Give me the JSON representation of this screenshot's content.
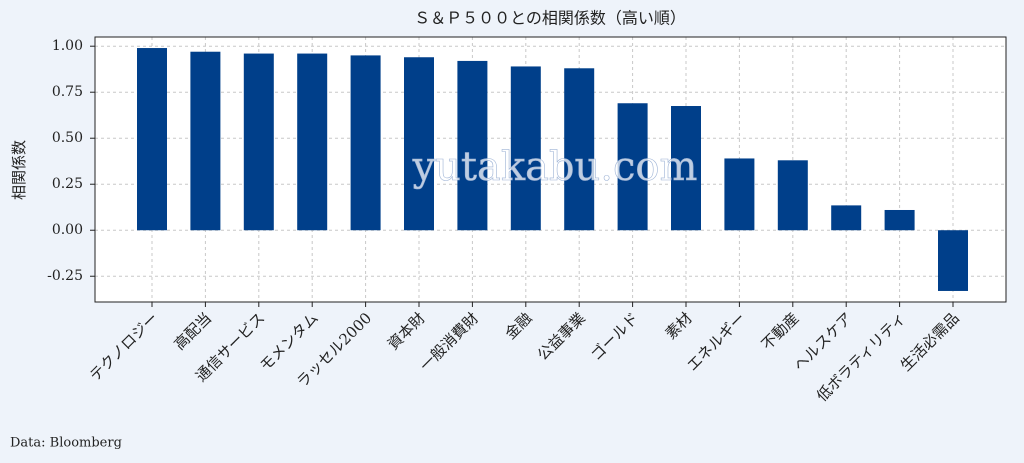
{
  "chart_data": {
    "type": "bar",
    "title": "Ｓ＆Ｐ５００との相関係数（高い順）",
    "ylabel": "相関係数",
    "source": "Data: Bloomberg",
    "watermark": "yutakabu.com",
    "categories": [
      "テクノロジー",
      "高配当",
      "通信サービス",
      "モメンタム",
      "ラッセル2000",
      "資本財",
      "一般消費財",
      "金融",
      "公益事業",
      "ゴールド",
      "素材",
      "エネルギー",
      "不動産",
      "ヘルスケア",
      "低ボラティリティ",
      "生活必需品"
    ],
    "values": [
      0.99,
      0.97,
      0.96,
      0.96,
      0.95,
      0.94,
      0.92,
      0.89,
      0.88,
      0.69,
      0.675,
      0.39,
      0.38,
      0.135,
      0.11,
      -0.33
    ],
    "color": "#003f8a",
    "ylim": [
      -0.39,
      1.05
    ],
    "yticks": [
      {
        "value": -0.25,
        "label": "-0.25"
      },
      {
        "value": 0,
        "label": "0.00"
      },
      {
        "value": 0.25,
        "label": "0.25"
      },
      {
        "value": 0.5,
        "label": "0.50"
      },
      {
        "value": 0.75,
        "label": "0.75"
      },
      {
        "value": 1,
        "label": "1.00"
      }
    ],
    "grid": true
  }
}
